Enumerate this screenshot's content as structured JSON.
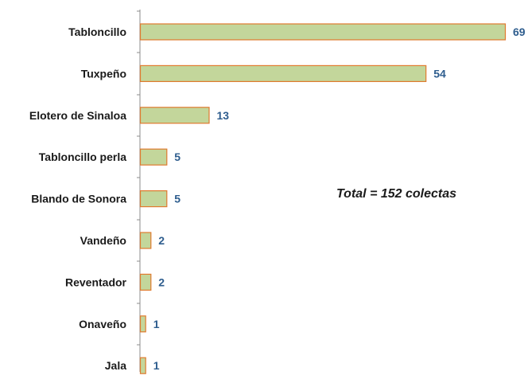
{
  "chart_data": {
    "type": "bar",
    "orientation": "horizontal",
    "categories": [
      "Tabloncillo",
      "Tuxpeño",
      "Elotero de Sinaloa",
      "Tabloncillo perla",
      "Blando de Sonora",
      "Vandeño",
      "Reventador",
      "Onaveño",
      "Jala"
    ],
    "values": [
      69,
      54,
      13,
      5,
      5,
      2,
      2,
      1,
      1
    ],
    "xlim": [
      0,
      69
    ],
    "grid": false,
    "legend": "none",
    "annotation": "Total = 152 colectas"
  },
  "colors": {
    "bar_fill": "#c3d69b",
    "bar_stroke": "#e07a2e",
    "value_label": "#2e5d8e",
    "axis": "#8c8c8c"
  }
}
